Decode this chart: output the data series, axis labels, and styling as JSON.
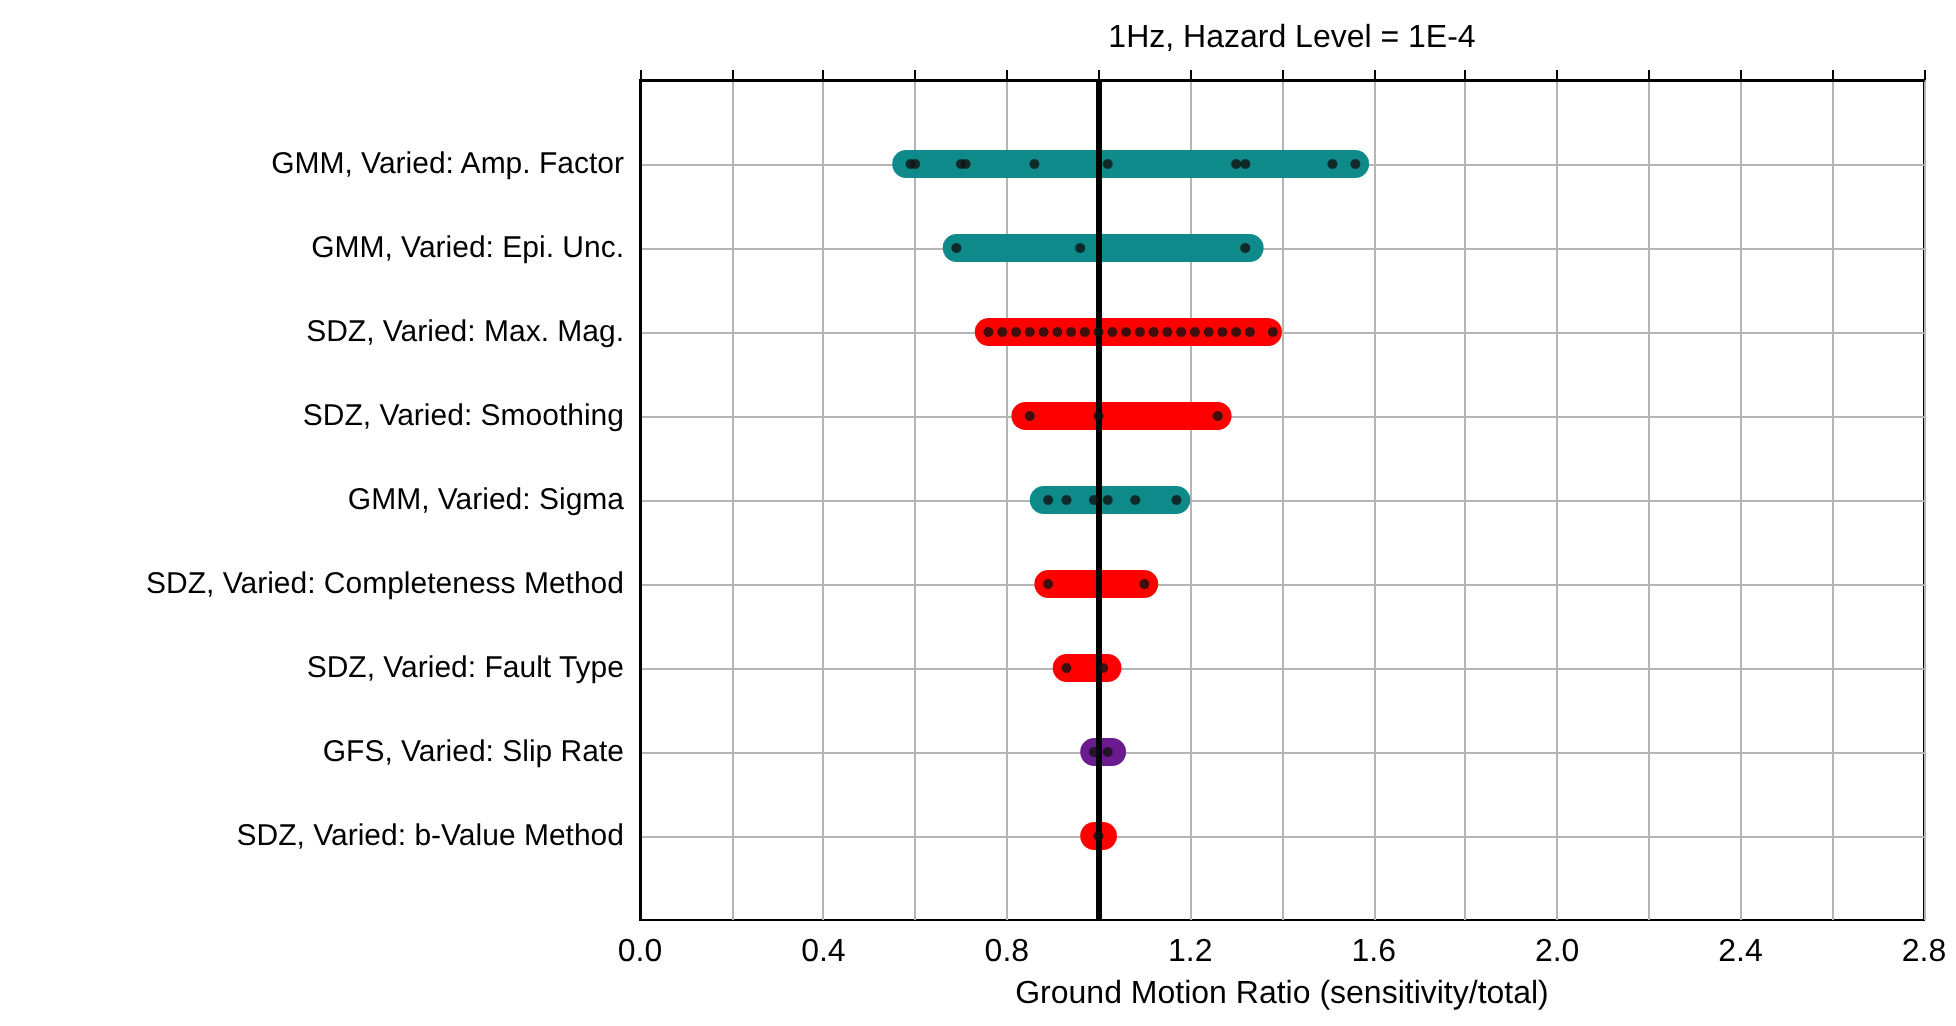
{
  "chart_data": {
    "type": "bar",
    "orientation": "horizontal",
    "title": "1Hz, Hazard Level = 1E-4",
    "xlabel": "Ground Motion Ratio (sensitivity/total)",
    "categories": [
      "GMM, Varied: Amp. Factor",
      "GMM, Varied: Epi. Unc.",
      "SDZ, Varied: Max. Mag.",
      "SDZ, Varied: Smoothing",
      "GMM, Varied: Sigma",
      "SDZ, Varied: Completeness Method",
      "SDZ, Varied: Fault Type",
      "GFS, Varied: Slip Rate",
      "SDZ, Varied: b-Value Method"
    ],
    "series": [
      {
        "base": [
          0.55,
          0.66,
          0.73,
          0.81,
          0.85,
          0.86,
          0.9,
          0.96,
          0.96
        ],
        "values": [
          1.04,
          0.7,
          0.67,
          0.48,
          0.35,
          0.27,
          0.15,
          0.1,
          0.08
        ],
        "colors": [
          "#0e8a8a",
          "#0e8a8a",
          "#ff0000",
          "#ff0000",
          "#0e8a8a",
          "#ff0000",
          "#ff0000",
          "#6a1b8f",
          "#ff0000"
        ]
      },
      {
        "type": "scatter",
        "color": "#111111",
        "marker": "circle",
        "x": [
          "GMM, Varied: Amp. Factor",
          "GMM, Varied: Amp. Factor",
          "GMM, Varied: Amp. Factor",
          "GMM, Varied: Amp. Factor",
          "GMM, Varied: Amp. Factor",
          "GMM, Varied: Amp. Factor",
          "GMM, Varied: Amp. Factor",
          "GMM, Varied: Amp. Factor",
          "GMM, Varied: Amp. Factor",
          "GMM, Varied: Amp. Factor",
          "GMM, Varied: Epi. Unc.",
          "GMM, Varied: Epi. Unc.",
          "GMM, Varied: Epi. Unc.",
          "SDZ, Varied: Max. Mag.",
          "SDZ, Varied: Max. Mag.",
          "SDZ, Varied: Max. Mag.",
          "SDZ, Varied: Max. Mag.",
          "SDZ, Varied: Max. Mag.",
          "SDZ, Varied: Max. Mag.",
          "SDZ, Varied: Max. Mag.",
          "SDZ, Varied: Max. Mag.",
          "SDZ, Varied: Max. Mag.",
          "SDZ, Varied: Max. Mag.",
          "SDZ, Varied: Max. Mag.",
          "SDZ, Varied: Max. Mag.",
          "SDZ, Varied: Max. Mag.",
          "SDZ, Varied: Max. Mag.",
          "SDZ, Varied: Max. Mag.",
          "SDZ, Varied: Max. Mag.",
          "SDZ, Varied: Max. Mag.",
          "SDZ, Varied: Max. Mag.",
          "SDZ, Varied: Max. Mag.",
          "SDZ, Varied: Max. Mag.",
          "SDZ, Varied: Max. Mag.",
          "SDZ, Varied: Smoothing",
          "SDZ, Varied: Smoothing",
          "SDZ, Varied: Smoothing",
          "GMM, Varied: Sigma",
          "GMM, Varied: Sigma",
          "GMM, Varied: Sigma",
          "GMM, Varied: Sigma",
          "GMM, Varied: Sigma",
          "GMM, Varied: Sigma",
          "SDZ, Varied: Completeness Method",
          "SDZ, Varied: Completeness Method",
          "SDZ, Varied: Fault Type",
          "SDZ, Varied: Fault Type",
          "GFS, Varied: Slip Rate",
          "GFS, Varied: Slip Rate",
          "SDZ, Varied: b-Value Method"
        ],
        "values": [
          0.59,
          0.6,
          0.7,
          0.71,
          0.86,
          1.02,
          1.3,
          1.32,
          1.51,
          1.56,
          0.69,
          0.96,
          1.32,
          0.76,
          0.79,
          0.82,
          0.85,
          0.88,
          0.91,
          0.94,
          0.97,
          1.0,
          1.03,
          1.06,
          1.09,
          1.12,
          1.15,
          1.18,
          1.21,
          1.24,
          1.27,
          1.3,
          1.33,
          1.38,
          0.85,
          1.0,
          1.26,
          0.89,
          0.93,
          0.99,
          1.02,
          1.08,
          1.17,
          0.89,
          1.1,
          0.93,
          1.01,
          0.99,
          1.02,
          1.0
        ]
      }
    ],
    "xlim": [
      0,
      2.8
    ],
    "xticks": [
      {
        "value": 0,
        "label": "0.0"
      },
      {
        "value": 0.2,
        "label": null
      },
      0.4,
      {
        "value": 0.6,
        "label": null
      },
      0.8,
      {
        "value": 1,
        "label": null
      },
      1.2,
      {
        "value": 1.4,
        "label": null
      },
      1.6,
      {
        "value": 1.8,
        "label": null
      },
      {
        "value": 2,
        "label": "2.0"
      },
      {
        "value": 2.2,
        "label": null
      },
      2.4,
      {
        "value": 2.6,
        "label": null
      },
      2.8
    ],
    "grid": true,
    "ref_lines": [
      {
        "axis": "x",
        "value": 1,
        "color": "#000000",
        "line_style": "solid"
      }
    ]
  }
}
